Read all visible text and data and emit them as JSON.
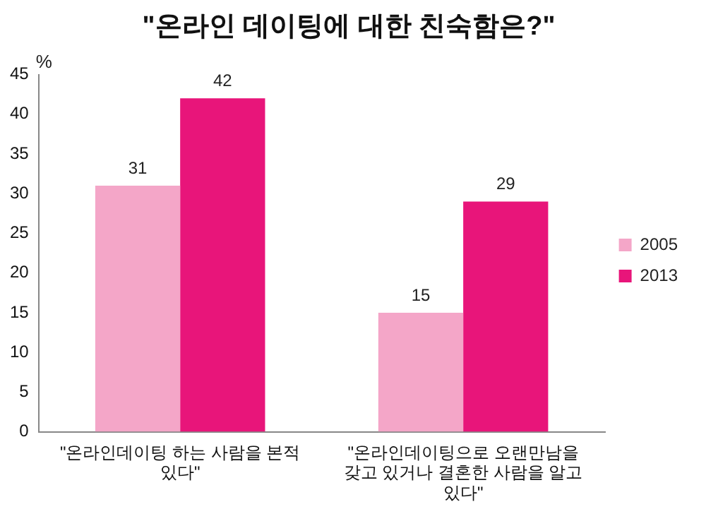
{
  "chart_data": {
    "type": "bar",
    "title": "\"온라인 데이팅에 대한 친숙함은?\"",
    "ylabel": "%",
    "categories": [
      "\"온라인데이팅 하는 사람을 본적 있다\"",
      "\"온라인데이팅으로 오랜만남을 갖고 있거나 결혼한 사람을 알고 있다\""
    ],
    "series": [
      {
        "name": "2005",
        "color": "#f4a6c8",
        "values": [
          31,
          15
        ]
      },
      {
        "name": "2013",
        "color": "#e8157a",
        "values": [
          42,
          29
        ]
      }
    ],
    "ylim": [
      0,
      45
    ],
    "yticks": [
      0,
      5,
      10,
      15,
      20,
      25,
      30,
      35,
      40,
      45
    ],
    "grid": false,
    "legend": "right",
    "data_labels": true
  }
}
